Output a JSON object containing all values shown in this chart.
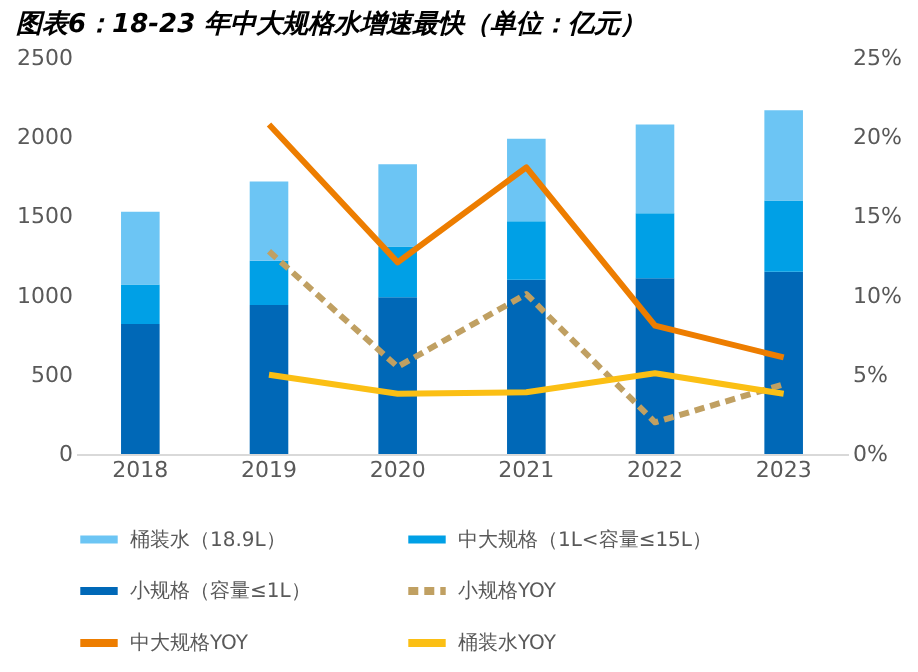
{
  "chart_data": {
    "type": "bar",
    "title": "图表6：18-23 年中大规格水增速最快（单位：亿元）",
    "categories": [
      "2018",
      "2019",
      "2020",
      "2021",
      "2022",
      "2023"
    ],
    "stacked": true,
    "legend": "bottom",
    "grid": false,
    "marker": "none",
    "ylim": [
      0,
      2500
    ],
    "yticks": [
      0,
      500,
      1000,
      1500,
      2000,
      2500
    ],
    "y2lim": [
      0,
      25
    ],
    "y2ticks": [
      {
        "value": 0,
        "label": "0%"
      },
      {
        "value": 5,
        "label": "5%"
      },
      {
        "value": 10,
        "label": "10%"
      },
      {
        "value": 15,
        "label": "15%"
      },
      {
        "value": 20,
        "label": "20%"
      },
      {
        "value": 25,
        "label": "25%"
      }
    ],
    "series": [
      {
        "name": "小规格（容量≤1L）",
        "color": "#0068b7",
        "values": [
          820,
          940,
          990,
          1100,
          1110,
          1150
        ]
      },
      {
        "name": "中大规格（1L<容量≤15L）",
        "color": "#00a0e6",
        "values": [
          250,
          280,
          320,
          370,
          410,
          450
        ]
      },
      {
        "name": "桶装水（18.9L）",
        "color": "#6cc5f4",
        "values": [
          460,
          500,
          520,
          520,
          560,
          570
        ]
      },
      {
        "name": "小规格YOY",
        "type": "line",
        "axis": "y2",
        "line_style": "dashed",
        "color": "#c0a062",
        "values": [
          null,
          12.8,
          5.5,
          10.1,
          2.0,
          4.4
        ]
      },
      {
        "name": "中大规格YOY",
        "type": "line",
        "axis": "y2",
        "line_style": "solid",
        "color": "#ed7d00",
        "values": [
          null,
          20.8,
          12.1,
          18.1,
          8.1,
          6.1
        ]
      },
      {
        "name": "桶装水YOY",
        "type": "line",
        "axis": "y2",
        "line_style": "solid",
        "color": "#fbbf14",
        "values": [
          null,
          5.0,
          3.8,
          3.9,
          5.1,
          3.8
        ]
      }
    ]
  }
}
